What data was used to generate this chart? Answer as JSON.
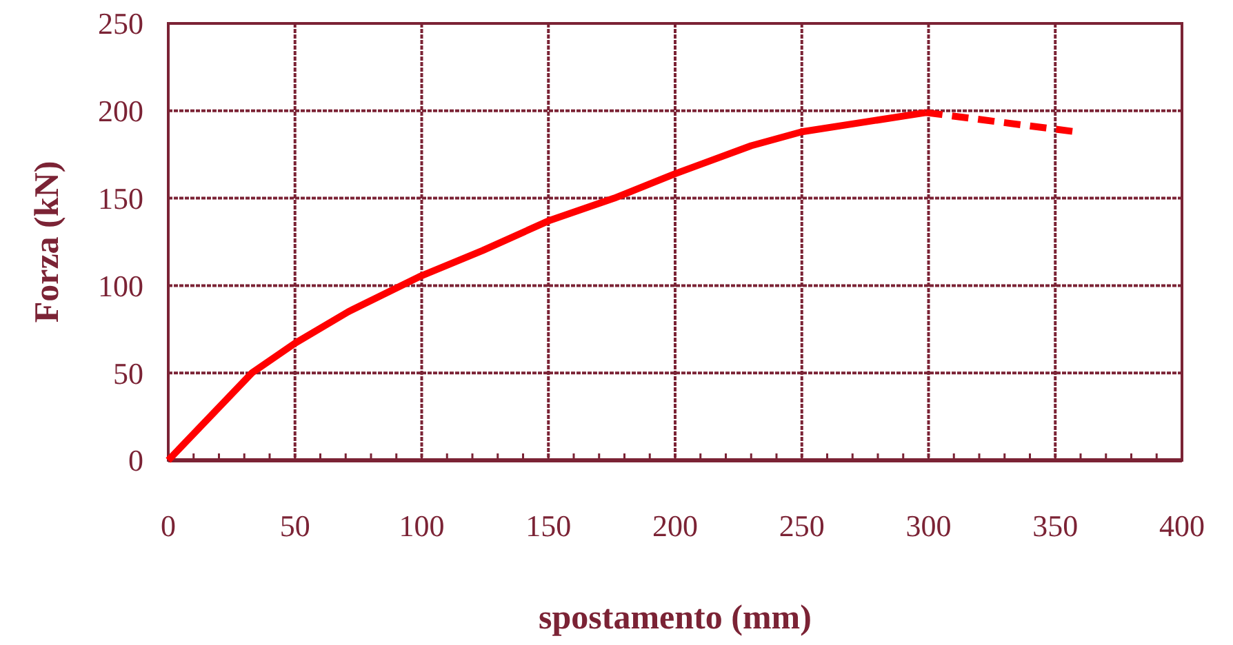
{
  "chart_data": {
    "type": "line",
    "xlabel": "spostamento (mm)",
    "ylabel": "Forza (kN)",
    "xlim": [
      0,
      400
    ],
    "xticks": [
      0,
      50,
      100,
      150,
      200,
      250,
      300,
      350,
      400
    ],
    "ylim": [
      0,
      250
    ],
    "yticks": [
      0,
      50,
      100,
      150,
      200,
      250
    ],
    "grid": true,
    "series": [
      {
        "color": "#ff0000",
        "line_style": "solid",
        "x": [
          0,
          33,
          50,
          71,
          99,
          124,
          150,
          176,
          200,
          230,
          250,
          299
        ],
        "values": [
          0,
          50,
          67,
          85,
          105,
          120,
          137,
          150,
          164,
          180,
          188,
          199
        ]
      },
      {
        "color": "#ff0000",
        "line_style": "dashed",
        "x": [
          299,
          358
        ],
        "values": [
          199,
          188
        ]
      }
    ]
  }
}
